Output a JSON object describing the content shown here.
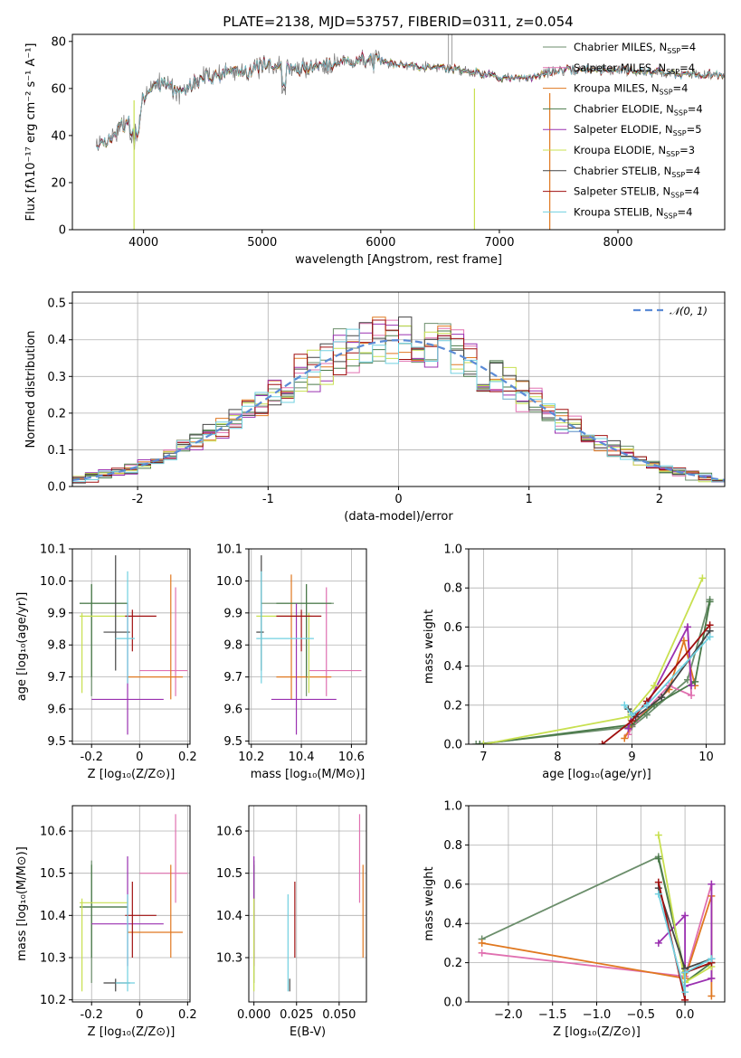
{
  "figure": {
    "title": "PLATE=2138, MJD=53757, FIBERID=0311, z=0.054",
    "colors": [
      "#6b8e6b",
      "#e070b0",
      "#e07820",
      "#4a7a4a",
      "#9a30b0",
      "#c8e050",
      "#444444",
      "#a01010",
      "#70d0e0"
    ]
  },
  "chart_data": [
    {
      "type": "line",
      "id": "spectrum",
      "title": "PLATE=2138, MJD=53757, FIBERID=0311, z=0.054",
      "xlabel": "wavelength [Angstrom, rest frame]",
      "ylabel": "Flux [fλ10⁻¹⁷ erg cm⁻² s⁻¹ A⁻¹]",
      "xlim": [
        3400,
        8900
      ],
      "ylim": [
        0,
        83
      ],
      "xticks": [
        4000,
        5000,
        6000,
        7000,
        8000
      ],
      "yticks": [
        0,
        20,
        40,
        60,
        80
      ],
      "grid": false,
      "legend": "right",
      "continuum": {
        "x": [
          3600,
          3700,
          3800,
          3900,
          3950,
          4000,
          4100,
          4200,
          4300,
          4500,
          4700,
          4900,
          5100,
          5300,
          5600,
          5900,
          6200,
          6500,
          6800,
          7000,
          7200,
          7400,
          7700,
          8000,
          8300,
          8600,
          8900
        ],
        "y": [
          36,
          38,
          43,
          48,
          38,
          58,
          62,
          63,
          57,
          65,
          67,
          68,
          70,
          68,
          71,
          72,
          70,
          69,
          67,
          65,
          64,
          67,
          68,
          68,
          67,
          66,
          66
        ]
      },
      "series": [
        {
          "name": "Chabrier MILES, N$_{SSP}$=4",
          "label_main": "Chabrier MILES, N",
          "label_sub": "SSP",
          "label_tail": "=4"
        },
        {
          "name": "Salpeter MILES, N$_{SSP}$=4",
          "label_main": "Salpeter MILES, N",
          "label_sub": "SSP",
          "label_tail": "=4"
        },
        {
          "name": "Kroupa MILES, N$_{SSP}$=4",
          "label_main": "Kroupa MILES, N",
          "label_sub": "SSP",
          "label_tail": "=4"
        },
        {
          "name": "Chabrier ELODIE, N$_{SSP}$=4",
          "label_main": "Chabrier ELODIE, N",
          "label_sub": "SSP",
          "label_tail": "=4"
        },
        {
          "name": "Salpeter ELODIE, N$_{SSP}$=5",
          "label_main": "Salpeter ELODIE, N",
          "label_sub": "SSP",
          "label_tail": "=5"
        },
        {
          "name": "Kroupa ELODIE, N$_{SSP}$=3",
          "label_main": "Kroupa ELODIE, N",
          "label_sub": "SSP",
          "label_tail": "=3"
        },
        {
          "name": "Chabrier STELIB, N$_{SSP}$=4",
          "label_main": "Chabrier STELIB, N",
          "label_sub": "SSP",
          "label_tail": "=4"
        },
        {
          "name": "Salpeter STELIB, N$_{SSP}$=4",
          "label_main": "Salpeter STELIB, N",
          "label_sub": "SSP",
          "label_tail": "=4"
        },
        {
          "name": "Kroupa STELIB, N$_{SSP}$=4",
          "label_main": "Kroupa STELIB, N",
          "label_sub": "SSP",
          "label_tail": "=4"
        }
      ]
    },
    {
      "type": "histogram",
      "id": "residuals",
      "xlabel": "(data-model)/error",
      "ylabel": "Normed distribution",
      "xlim": [
        -2.5,
        2.5
      ],
      "ylim": [
        0,
        0.53
      ],
      "xticks": [
        -2,
        -1,
        0,
        1,
        2
      ],
      "yticks": [
        0.0,
        0.1,
        0.2,
        0.3,
        0.4,
        0.5
      ],
      "grid": true,
      "legend": "top-right",
      "reference": {
        "name": "$\\mathcal{N}(0,1)$",
        "label": "𝒩(0, 1)",
        "color": "#5b8bd6",
        "mean": 0,
        "sigma": 1
      },
      "bin_width": 0.1
    },
    {
      "type": "errorbar",
      "id": "age_vs_Z",
      "xlabel": "Z [log₁₀(Z/Z⊙)]",
      "ylabel": "age  [log₁₀(age/yr)]",
      "xlim": [
        -0.28,
        0.21
      ],
      "ylim": [
        9.49,
        10.1
      ],
      "xticks": [
        -0.2,
        0.0,
        0.2
      ],
      "yticks": [
        9.5,
        9.6,
        9.7,
        9.8,
        9.9,
        10.0,
        10.1
      ],
      "grid": true
    },
    {
      "type": "errorbar",
      "id": "age_vs_mass",
      "xlabel": "mass [log₁₀(M/M⊙)]",
      "ylabel": "",
      "xlim": [
        10.19,
        10.66
      ],
      "ylim": [
        9.49,
        10.1
      ],
      "xticks": [
        10.2,
        10.4,
        10.6
      ],
      "yticks": [
        9.5,
        9.6,
        9.7,
        9.8,
        9.9,
        10.0,
        10.1
      ],
      "grid": true
    },
    {
      "type": "line",
      "id": "weight_vs_age",
      "xlabel": "age  [log₁₀(age/yr)]",
      "ylabel": "mass weight",
      "xlim": [
        6.8,
        10.25
      ],
      "ylim": [
        0,
        1.0
      ],
      "xticks": [
        7,
        8,
        9,
        10
      ],
      "yticks": [
        0.0,
        0.2,
        0.4,
        0.6,
        0.8,
        1.0
      ],
      "grid": true
    },
    {
      "type": "errorbar",
      "id": "mass_vs_Z",
      "xlabel": "Z [log₁₀(Z/Z⊙)]",
      "ylabel": "mass [log₁₀(M/M⊙)]",
      "xlim": [
        -0.28,
        0.21
      ],
      "ylim": [
        10.195,
        10.66
      ],
      "xticks": [
        -0.2,
        0.0,
        0.2
      ],
      "yticks": [
        10.2,
        10.3,
        10.4,
        10.5,
        10.6
      ],
      "grid": true
    },
    {
      "type": "errorbar",
      "id": "mass_vs_ebv",
      "xlabel": "E(B-V)",
      "ylabel": "",
      "xlim": [
        -0.003,
        0.066
      ],
      "ylim": [
        10.195,
        10.66
      ],
      "xticks": [
        0.0,
        0.025,
        0.05
      ],
      "xticklabels": [
        "0.000",
        "0.025",
        "0.050"
      ],
      "yticks": [
        10.3,
        10.4,
        10.5,
        10.6
      ],
      "grid": true
    },
    {
      "type": "line",
      "id": "weight_vs_Z",
      "xlabel": "Z [log₁₀(Z/Z⊙)]",
      "ylabel": "mass weight",
      "xlim": [
        -2.45,
        0.45
      ],
      "ylim": [
        0,
        1.0
      ],
      "xticks": [
        -2.0,
        -1.5,
        -1.0,
        -0.5,
        0.0
      ],
      "xticklabels": [
        "−2.0",
        "−1.5",
        "−1.0",
        "−0.5",
        "0.0"
      ],
      "yticks": [
        0.0,
        0.2,
        0.4,
        0.6,
        0.8,
        1.0
      ],
      "grid": true
    }
  ],
  "fits": [
    {
      "Z": -0.2,
      "Zlo": -0.25,
      "Zhi": -0.05,
      "age": 9.93,
      "agelo": 9.64,
      "agehi": 9.99,
      "mass": 10.42,
      "masslo": 10.24,
      "masshi": 10.53,
      "ebv": 0.0,
      "ages": [
        6.9,
        9.0,
        9.2,
        9.75,
        10.05
      ],
      "wages": [
        0.0,
        0.09,
        0.15,
        0.33,
        0.74
      ],
      "Zs": [
        -2.3,
        -0.3,
        0.0,
        0.3
      ],
      "wZs": [
        0.32,
        0.74,
        0.15,
        0.2
      ]
    },
    {
      "Z": 0.15,
      "Zlo": 0.0,
      "Zhi": 0.2,
      "age": 9.72,
      "agelo": 9.64,
      "agehi": 9.98,
      "mass": 10.5,
      "masslo": 10.43,
      "masshi": 10.64,
      "ebv": 0.062,
      "ages": [
        8.95,
        9.05,
        9.5,
        9.8,
        9.75
      ],
      "wages": [
        0.05,
        0.12,
        0.3,
        0.25,
        0.6
      ],
      "Zs": [
        -2.3,
        0.0,
        0.3,
        0.3
      ],
      "wZs": [
        0.25,
        0.13,
        0.6,
        0.12
      ]
    },
    {
      "Z": 0.13,
      "Zlo": -0.05,
      "Zhi": 0.18,
      "age": 9.7,
      "agelo": 9.63,
      "agehi": 10.02,
      "mass": 10.36,
      "masslo": 10.3,
      "masshi": 10.52,
      "ebv": 0.064,
      "ages": [
        8.9,
        9.0,
        9.5,
        9.7,
        9.85
      ],
      "wages": [
        0.03,
        0.1,
        0.28,
        0.53,
        0.3
      ],
      "Zs": [
        -2.3,
        0.0,
        0.3,
        0.3
      ],
      "wZs": [
        0.3,
        0.12,
        0.54,
        0.03
      ]
    },
    {
      "Z": -0.2,
      "Zlo": -0.25,
      "Zhi": -0.05,
      "age": 9.93,
      "agelo": 9.7,
      "agehi": 9.99,
      "mass": 10.42,
      "masslo": 10.3,
      "masshi": 10.52,
      "ebv": 0.0,
      "ages": [
        6.95,
        9.0,
        9.3,
        9.85,
        10.05
      ],
      "wages": [
        0.0,
        0.1,
        0.2,
        0.32,
        0.73
      ],
      "Zs": [
        -0.3,
        0.0,
        0.0,
        0.3
      ],
      "wZs": [
        0.73,
        0.15,
        0.1,
        0.2
      ]
    },
    {
      "Z": -0.05,
      "Zlo": -0.2,
      "Zhi": 0.1,
      "age": 9.63,
      "agelo": 9.52,
      "agehi": 9.93,
      "mass": 10.38,
      "masslo": 10.28,
      "masshi": 10.54,
      "ebv": 0.0,
      "ages": [
        8.95,
        9.0,
        9.2,
        9.75,
        9.8
      ],
      "wages": [
        0.08,
        0.15,
        0.2,
        0.6,
        0.3
      ],
      "Zs": [
        -0.3,
        0.0,
        0.0,
        0.3,
        0.3
      ],
      "wZs": [
        0.3,
        0.44,
        0.08,
        0.12,
        0.6
      ]
    },
    {
      "Z": -0.24,
      "Zlo": -0.25,
      "Zhi": -0.05,
      "age": 9.89,
      "agelo": 9.65,
      "agehi": 9.9,
      "mass": 10.43,
      "masslo": 10.22,
      "masshi": 10.44,
      "ebv": 0.0,
      "ages": [
        7.0,
        8.95,
        9.3,
        9.95
      ],
      "wages": [
        0.0,
        0.14,
        0.3,
        0.85
      ],
      "Zs": [
        -0.3,
        0.0,
        0.3
      ],
      "wZs": [
        0.85,
        0.1,
        0.18
      ]
    },
    {
      "Z": -0.1,
      "Zlo": -0.15,
      "Zhi": -0.04,
      "age": 9.84,
      "agelo": 9.72,
      "agehi": 10.08,
      "mass": 10.24,
      "masslo": 10.22,
      "masshi": 10.25,
      "ebv": 0.021,
      "ages": [
        8.95,
        9.05,
        9.4,
        10.05
      ],
      "wages": [
        0.18,
        0.14,
        0.24,
        0.58
      ],
      "Zs": [
        -0.3,
        0.0,
        0.3
      ],
      "wZs": [
        0.58,
        0.17,
        0.22
      ]
    },
    {
      "Z": -0.03,
      "Zlo": -0.06,
      "Zhi": 0.07,
      "age": 9.89,
      "agelo": 9.78,
      "agehi": 9.91,
      "mass": 10.4,
      "masslo": 10.3,
      "masshi": 10.48,
      "ebv": 0.024,
      "ages": [
        8.6,
        9.0,
        9.2,
        10.05
      ],
      "wages": [
        0.0,
        0.12,
        0.22,
        0.61
      ],
      "Zs": [
        -0.3,
        0.0,
        0.0,
        0.3
      ],
      "wZs": [
        0.61,
        0.01,
        0.15,
        0.2
      ]
    },
    {
      "Z": -0.05,
      "Zlo": -0.1,
      "Zhi": -0.02,
      "age": 9.82,
      "agelo": 9.68,
      "agehi": 10.03,
      "mass": 10.24,
      "masslo": 10.22,
      "masshi": 10.45,
      "ebv": 0.02,
      "ages": [
        8.9,
        9.0,
        9.2,
        10.05
      ],
      "wages": [
        0.2,
        0.15,
        0.2,
        0.55
      ],
      "Zs": [
        -0.3,
        0.0,
        0.0,
        0.3
      ],
      "wZs": [
        0.55,
        0.05,
        0.15,
        0.22
      ]
    }
  ]
}
